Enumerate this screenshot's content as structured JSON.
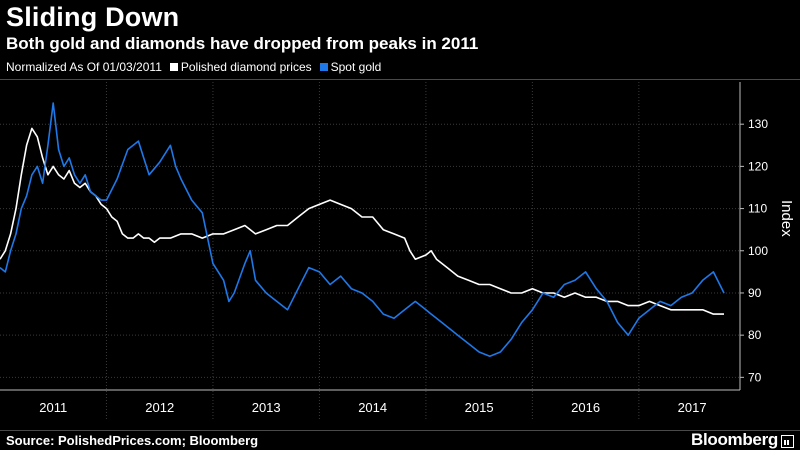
{
  "header": {
    "title": "Sliding Down",
    "subtitle": "Both gold and diamonds have dropped from peaks in 2011"
  },
  "legend": {
    "note": "Normalized As Of 01/03/2011",
    "items": [
      {
        "label": "Polished diamond prices",
        "color": "#ffffff"
      },
      {
        "label": "Spot gold",
        "color": "#1f78e8"
      }
    ]
  },
  "footer": {
    "source": "Source: PolishedPrices.com; Bloomberg",
    "brand": "Bloomberg"
  },
  "chart_data": {
    "type": "line",
    "ylabel": "Index",
    "ylim": [
      67,
      140
    ],
    "yticks": [
      70,
      80,
      90,
      100,
      110,
      120,
      130
    ],
    "xlim": [
      2011.0,
      2017.95
    ],
    "year_labels": [
      "2011",
      "2012",
      "2013",
      "2014",
      "2015",
      "2016",
      "2017"
    ],
    "grid": true,
    "y_axis_side": "right",
    "series": [
      {
        "name": "Polished diamond prices",
        "color": "#ffffff",
        "x": [
          2011.0,
          2011.05,
          2011.1,
          2011.15,
          2011.2,
          2011.25,
          2011.3,
          2011.35,
          2011.4,
          2011.45,
          2011.5,
          2011.55,
          2011.6,
          2011.65,
          2011.7,
          2011.75,
          2011.8,
          2011.85,
          2011.9,
          2011.95,
          2012.0,
          2012.05,
          2012.1,
          2012.15,
          2012.2,
          2012.25,
          2012.3,
          2012.35,
          2012.4,
          2012.45,
          2012.5,
          2012.6,
          2012.7,
          2012.8,
          2012.9,
          2013.0,
          2013.1,
          2013.2,
          2013.3,
          2013.4,
          2013.5,
          2013.6,
          2013.7,
          2013.8,
          2013.9,
          2014.0,
          2014.1,
          2014.2,
          2014.3,
          2014.4,
          2014.5,
          2014.6,
          2014.7,
          2014.8,
          2014.85,
          2014.9,
          2015.0,
          2015.05,
          2015.1,
          2015.2,
          2015.3,
          2015.4,
          2015.5,
          2015.6,
          2015.7,
          2015.8,
          2015.9,
          2016.0,
          2016.1,
          2016.2,
          2016.3,
          2016.4,
          2016.5,
          2016.6,
          2016.7,
          2016.8,
          2016.9,
          2017.0,
          2017.1,
          2017.2,
          2017.3,
          2017.4,
          2017.5,
          2017.6,
          2017.7,
          2017.8
        ],
        "values": [
          98,
          100,
          104,
          110,
          118,
          125,
          129,
          127,
          122,
          118,
          120,
          118,
          117,
          119,
          116,
          115,
          116,
          114,
          113,
          111,
          110,
          108,
          107,
          104,
          103,
          103,
          104,
          103,
          103,
          102,
          103,
          103,
          104,
          104,
          103,
          104,
          104,
          105,
          106,
          104,
          105,
          106,
          106,
          108,
          110,
          111,
          112,
          111,
          110,
          108,
          108,
          105,
          104,
          103,
          100,
          98,
          99,
          100,
          98,
          96,
          94,
          93,
          92,
          92,
          91,
          90,
          90,
          91,
          90,
          90,
          89,
          90,
          89,
          89,
          88,
          88,
          87,
          87,
          88,
          87,
          86,
          86,
          86,
          86,
          85,
          85
        ]
      },
      {
        "name": "Spot gold",
        "color": "#1f78e8",
        "x": [
          2011.0,
          2011.05,
          2011.1,
          2011.15,
          2011.2,
          2011.25,
          2011.3,
          2011.35,
          2011.4,
          2011.45,
          2011.5,
          2011.55,
          2011.6,
          2011.65,
          2011.7,
          2011.75,
          2011.8,
          2011.85,
          2011.9,
          2011.95,
          2012.0,
          2012.1,
          2012.2,
          2012.3,
          2012.35,
          2012.4,
          2012.5,
          2012.6,
          2012.65,
          2012.7,
          2012.8,
          2012.9,
          2013.0,
          2013.1,
          2013.15,
          2013.2,
          2013.3,
          2013.35,
          2013.4,
          2013.5,
          2013.6,
          2013.7,
          2013.8,
          2013.9,
          2014.0,
          2014.1,
          2014.2,
          2014.3,
          2014.4,
          2014.5,
          2014.6,
          2014.7,
          2014.8,
          2014.9,
          2015.0,
          2015.05,
          2015.1,
          2015.2,
          2015.3,
          2015.4,
          2015.5,
          2015.6,
          2015.7,
          2015.8,
          2015.9,
          2016.0,
          2016.1,
          2016.2,
          2016.3,
          2016.4,
          2016.5,
          2016.6,
          2016.7,
          2016.8,
          2016.9,
          2017.0,
          2017.1,
          2017.2,
          2017.3,
          2017.4,
          2017.5,
          2017.6,
          2017.7,
          2017.8
        ],
        "values": [
          96,
          95,
          100,
          104,
          110,
          113,
          118,
          120,
          116,
          125,
          135,
          124,
          120,
          122,
          118,
          116,
          118,
          114,
          113,
          112,
          112,
          117,
          124,
          126,
          122,
          118,
          121,
          125,
          120,
          117,
          112,
          109,
          97,
          93,
          88,
          90,
          97,
          100,
          93,
          90,
          88,
          86,
          91,
          96,
          95,
          92,
          94,
          91,
          90,
          88,
          85,
          84,
          86,
          88,
          86,
          85,
          84,
          82,
          80,
          78,
          76,
          75,
          76,
          79,
          83,
          86,
          90,
          89,
          92,
          93,
          95,
          91,
          88,
          83,
          80,
          84,
          86,
          88,
          87,
          89,
          90,
          93,
          95,
          90
        ]
      }
    ]
  }
}
